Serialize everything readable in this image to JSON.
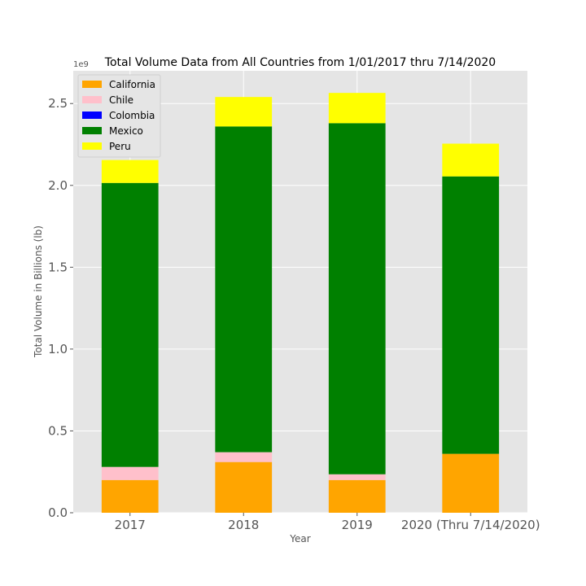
{
  "chart_data": {
    "type": "bar",
    "stacked": true,
    "title": "Total Volume Data from All Countries from 1/01/2017 thru 7/14/2020",
    "xlabel": "Year",
    "ylabel": "Total Volume in Billions (lb)",
    "y_offset_label": "1e9",
    "ylim": [
      0,
      2.7
    ],
    "yticks": [
      "0.0",
      "0.5",
      "1.0",
      "1.5",
      "2.0",
      "2.5"
    ],
    "categories": [
      "2017",
      "2018",
      "2019",
      "2020 (Thru 7/14/2020)"
    ],
    "series": [
      {
        "name": "California",
        "color": "#ffa500",
        "values": [
          0.2,
          0.31,
          0.2,
          0.36
        ]
      },
      {
        "name": "Chile",
        "color": "#ffc0cb",
        "values": [
          0.08,
          0.06,
          0.035,
          0.0
        ]
      },
      {
        "name": "Colombia",
        "color": "#0000ff",
        "values": [
          0.0,
          0.0,
          0.0,
          0.0
        ]
      },
      {
        "name": "Mexico",
        "color": "#008000",
        "values": [
          1.735,
          1.99,
          2.145,
          1.695
        ]
      },
      {
        "name": "Peru",
        "color": "#ffff00",
        "values": [
          0.14,
          0.18,
          0.185,
          0.2
        ]
      }
    ],
    "legend_position": "top-left",
    "grid": true,
    "background": "#e5e5e5"
  }
}
